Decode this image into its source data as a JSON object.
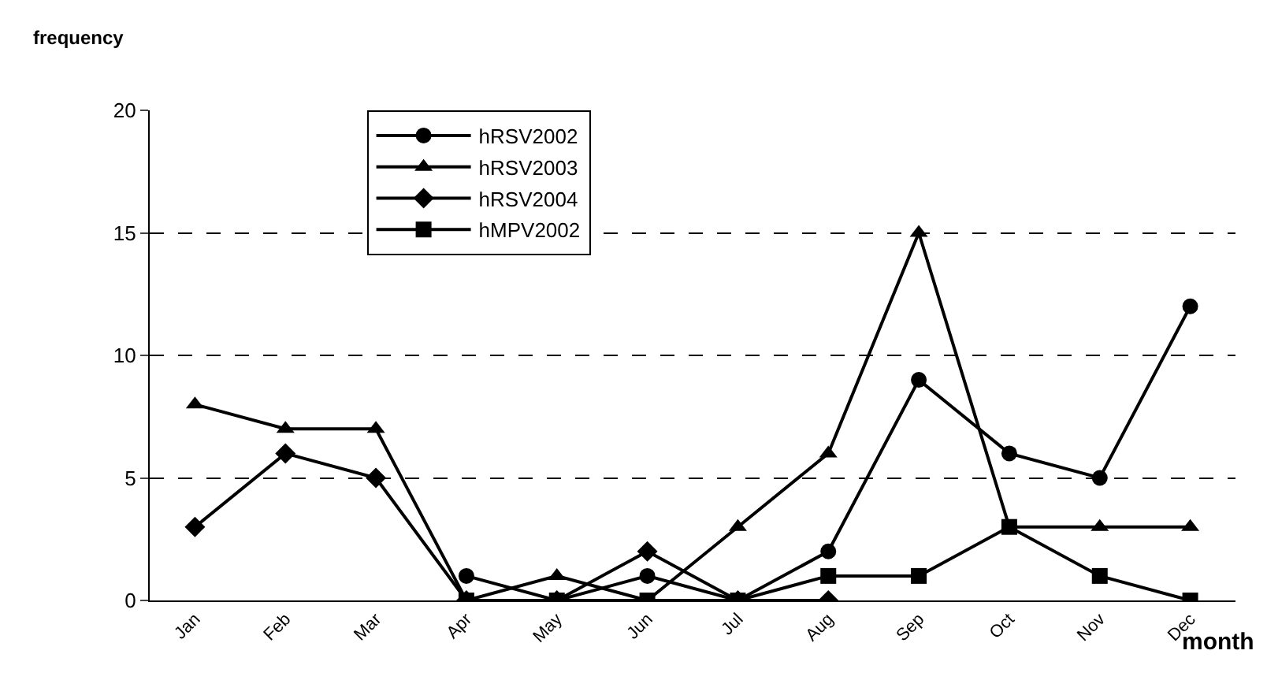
{
  "chart_data": {
    "type": "line",
    "ylabel": "frequency",
    "xlabel": "month",
    "categories": [
      "Jan",
      "Feb",
      "Mar",
      "Apr",
      "May",
      "Jun",
      "Jul",
      "Aug",
      "Sep",
      "Oct",
      "Nov",
      "Dec"
    ],
    "series": [
      {
        "name": "hRSV2002",
        "color": "#000000",
        "marker": "circle",
        "values": [
          null,
          null,
          null,
          1,
          0,
          1,
          0,
          2,
          9,
          6,
          5,
          12
        ]
      },
      {
        "name": "hRSV2003",
        "color": "#000000",
        "marker": "triangle",
        "values": [
          8,
          7,
          7,
          0,
          1,
          0,
          3,
          6,
          15,
          3,
          3,
          3
        ]
      },
      {
        "name": "hRSV2004",
        "color": "#000000",
        "marker": "diamond",
        "values": [
          3,
          6,
          5,
          0,
          0,
          2,
          0,
          0,
          null,
          null,
          null,
          null
        ]
      },
      {
        "name": "hMPV2002",
        "color": "#000000",
        "marker": "square",
        "values": [
          null,
          null,
          null,
          0,
          0,
          0,
          0,
          1,
          1,
          3,
          1,
          0
        ]
      }
    ],
    "ylim": [
      0,
      20
    ],
    "yticks": [
      0,
      5,
      10,
      15,
      20
    ],
    "grid": "y",
    "legend": "top",
    "line_style": "solid"
  }
}
